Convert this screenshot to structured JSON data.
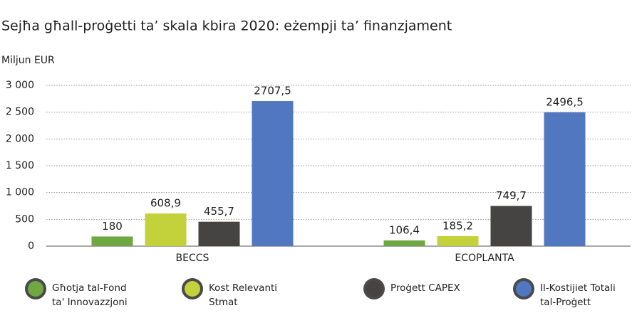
{
  "chart_data": {
    "type": "bar",
    "title": "Sejħa għall-proġetti ta’ skala kbira 2020: eżempji ta’ finanzjament",
    "y_label": "Miljun EUR",
    "categories": [
      "BECCS",
      "ECOPLANTA"
    ],
    "series": [
      {
        "name": "Għotja tal-Fond ta' Innovazzjoni",
        "color": "#6fa843",
        "values": [
          180,
          106.4
        ],
        "value_labels": [
          "180",
          "106,4"
        ]
      },
      {
        "name": "Kost Relevanti Stmat",
        "color": "#c3d13b",
        "values": [
          608.9,
          185.2
        ],
        "value_labels": [
          "608,9",
          "185,2"
        ]
      },
      {
        "name": "Proġett CAPEX",
        "color": "#464442",
        "values": [
          455.7,
          749.7
        ],
        "value_labels": [
          "455,7",
          "749,7"
        ]
      },
      {
        "name": "Il-Kostijiet Totali tal-Proġett",
        "color": "#5077c0",
        "values": [
          2707.5,
          2496.5
        ],
        "value_labels": [
          "2707,5",
          "2496,5"
        ]
      }
    ],
    "ylim": [
      0,
      3000
    ],
    "yticks": [
      0,
      500,
      {
        "value": 1000,
        "label": "1 000"
      },
      {
        "value": 1500,
        "label": "1 500"
      },
      {
        "value": 2000,
        "label": "2 000"
      },
      {
        "value": 2500,
        "label": "2 500"
      },
      {
        "value": 3000,
        "label": "3 000"
      }
    ],
    "grid": true
  }
}
